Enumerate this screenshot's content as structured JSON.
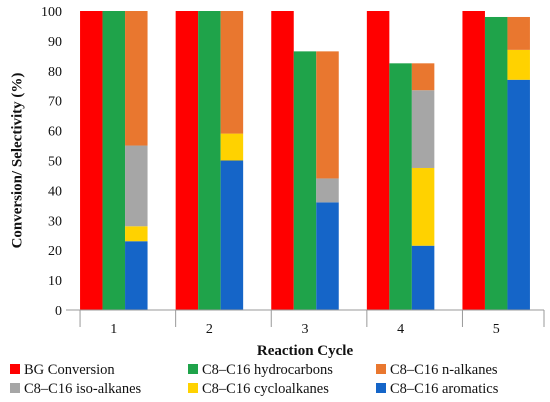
{
  "chart_data": {
    "type": "bar",
    "xlabel": "Reaction Cycle",
    "ylabel": "Conversion/ Selectivity (%)",
    "ylim": [
      0,
      100
    ],
    "yticks": [
      0,
      10,
      20,
      30,
      40,
      50,
      60,
      70,
      80,
      90,
      100
    ],
    "categories": [
      "1",
      "2",
      "3",
      "4",
      "5"
    ],
    "grid": false,
    "legend_position": "bottom",
    "series": [
      {
        "name": "BG Conversion",
        "color": "#ff0000",
        "values": [
          100,
          100,
          100,
          100,
          100
        ]
      },
      {
        "name": "C8–C16 hydrocarbons",
        "color": "#1fa34a",
        "values": [
          100,
          100,
          86.5,
          82.5,
          98
        ]
      }
    ],
    "stacked_series": [
      {
        "name": "C8–C16 aromatics",
        "color": "#1565c8",
        "values": [
          23,
          50,
          36,
          21.5,
          77
        ]
      },
      {
        "name": "C8–C16 cycloalkanes",
        "color": "#ffd200",
        "values": [
          5,
          9,
          0,
          26,
          10
        ]
      },
      {
        "name": "C8–C16 iso-alkanes",
        "color": "#a6a6a6",
        "values": [
          27,
          0,
          8,
          26,
          0
        ]
      },
      {
        "name": "C8–C16 n-alkanes",
        "color": "#e9772f",
        "values": [
          45,
          41,
          42.5,
          9,
          11
        ]
      }
    ],
    "legend": [
      {
        "label": "BG Conversion",
        "color": "#ff0000"
      },
      {
        "label": "C8–C16 hydrocarbons",
        "color": "#1fa34a"
      },
      {
        "label": "C8–C16 n-alkanes",
        "color": "#e9772f"
      },
      {
        "label": "C8–C16 iso-alkanes",
        "color": "#a6a6a6"
      },
      {
        "label": "C8–C16 cycloalkanes",
        "color": "#ffd200"
      },
      {
        "label": "C8–C16 aromatics",
        "color": "#1565c8"
      }
    ]
  }
}
